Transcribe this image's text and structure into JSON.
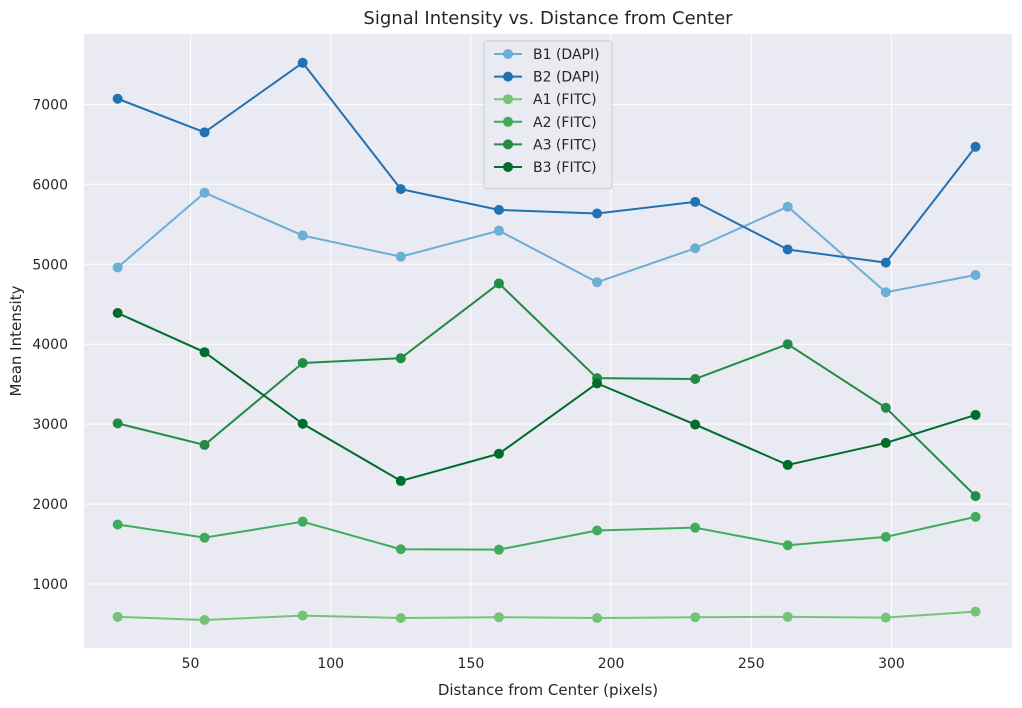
{
  "chart_data": {
    "type": "line",
    "title": "Signal Intensity vs. Distance from Center",
    "xlabel": "Distance from Center (pixels)",
    "ylabel": "Mean Intensity",
    "xlim": [
      12,
      343
    ],
    "ylim": [
      200,
      7880
    ],
    "xticks": [
      50,
      100,
      150,
      200,
      250,
      300
    ],
    "yticks": [
      1000,
      2000,
      3000,
      4000,
      5000,
      6000,
      7000
    ],
    "grid": true,
    "legend_position": "top-center",
    "x": [
      24,
      55,
      90,
      125,
      160,
      195,
      230,
      263,
      298,
      330
    ],
    "series": [
      {
        "name": "B1 (DAPI)",
        "color": "#6baed6",
        "values": [
          4960,
          5895,
          5360,
          5095,
          5420,
          4775,
          5200,
          5720,
          4650,
          4865
        ]
      },
      {
        "name": "B2 (DAPI)",
        "color": "#2171b5",
        "values": [
          7070,
          6650,
          7520,
          5940,
          5680,
          5635,
          5780,
          5185,
          5020,
          6470
        ]
      },
      {
        "name": "A1 (FITC)",
        "color": "#74c476",
        "values": [
          590,
          550,
          605,
          575,
          585,
          575,
          585,
          590,
          580,
          655
        ]
      },
      {
        "name": "A2 (FITC)",
        "color": "#41ab5d",
        "values": [
          1745,
          1580,
          1780,
          1435,
          1430,
          1670,
          1705,
          1485,
          1590,
          1840
        ]
      },
      {
        "name": "A3 (FITC)",
        "color": "#238b45",
        "values": [
          3010,
          2740,
          3765,
          3825,
          4760,
          3575,
          3565,
          4000,
          3205,
          2100
        ]
      },
      {
        "name": "B3 (FITC)",
        "color": "#006d2c",
        "values": [
          4390,
          3900,
          3005,
          2290,
          2630,
          3510,
          2995,
          2490,
          2765,
          3115
        ]
      }
    ]
  }
}
